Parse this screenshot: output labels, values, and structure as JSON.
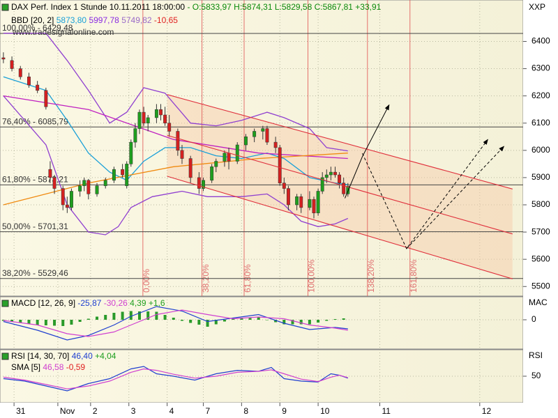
{
  "chart_data": [
    {
      "type": "candlestick",
      "title": "DAX Perf. Index 1 Stunde",
      "subtitle": "10.11.2011 18:00:00",
      "quote": "- O:5833,97 H:5874,31 L:5829,58 C:5867,81",
      "change": "+33,91",
      "watermark": "www.tradesignalonline.com",
      "axis_label": "XXP",
      "indicator": {
        "label": "BBD [20, 2]",
        "readings": [
          {
            "text": "5873,80",
            "color": "#1aa0d8"
          },
          {
            "text": "5997,78",
            "color": "#8a2be2"
          },
          {
            "text": "5749,82",
            "color": "#9a6ac8"
          },
          {
            "text": "-10,65",
            "color": "#e02020"
          }
        ]
      },
      "x": [
        0,
        2,
        4,
        6,
        8,
        10,
        11,
        12,
        14,
        15,
        16,
        18,
        19,
        20,
        22,
        24,
        26,
        28,
        29,
        30,
        31,
        32,
        33,
        34,
        36,
        37,
        38,
        39,
        41,
        42,
        44,
        46,
        47,
        49,
        50,
        52,
        53,
        55,
        57,
        59,
        61,
        62,
        64,
        65,
        66,
        67,
        69,
        70,
        72,
        73,
        74,
        75,
        76,
        77,
        78,
        79,
        80,
        81
      ],
      "open": [
        6340,
        6330,
        6300,
        6270,
        6240,
        6220,
        5930,
        5900,
        5860,
        5800,
        5790,
        5850,
        5870,
        5890,
        5840,
        5870,
        5890,
        5930,
        5870,
        5950,
        6030,
        6080,
        6140,
        6100,
        6120,
        6150,
        6130,
        6100,
        6070,
        6000,
        5970,
        5900,
        5860,
        5890,
        5940,
        5960,
        5990,
        5960,
        6020,
        6050,
        6070,
        6080,
        6030,
        6010,
        5880,
        5860,
        5800,
        5830,
        5790,
        5820,
        5770,
        5850,
        5900,
        5910,
        5920,
        5910,
        5880,
        5840
      ],
      "high": [
        6360,
        6345,
        6310,
        6285,
        6255,
        6230,
        5960,
        5910,
        5870,
        5830,
        5860,
        5890,
        5900,
        5895,
        5880,
        5900,
        5940,
        5950,
        5960,
        6040,
        6100,
        6150,
        6160,
        6130,
        6170,
        6170,
        6160,
        6130,
        6080,
        6020,
        5980,
        5920,
        5900,
        5950,
        5970,
        6000,
        6010,
        6030,
        6060,
        6080,
        6090,
        6090,
        6050,
        6020,
        5900,
        5870,
        5840,
        5840,
        5850,
        5830,
        5860,
        5920,
        5930,
        5940,
        5940,
        5920,
        5900,
        5880
      ],
      "low": [
        6320,
        6290,
        6260,
        6230,
        6210,
        6150,
        5880,
        5840,
        5780,
        5770,
        5780,
        5830,
        5850,
        5820,
        5830,
        5860,
        5880,
        5900,
        5860,
        5940,
        6010,
        6060,
        6090,
        6070,
        6100,
        6110,
        6090,
        6050,
        5980,
        5950,
        5880,
        5840,
        5850,
        5880,
        5920,
        5940,
        5930,
        5950,
        6000,
        6030,
        6040,
        6020,
        5990,
        5870,
        5840,
        5780,
        5780,
        5770,
        5780,
        5750,
        5760,
        5840,
        5880,
        5890,
        5900,
        5860,
        5830,
        5830
      ],
      "close": [
        6335,
        6300,
        6270,
        6240,
        6220,
        6160,
        5900,
        5860,
        5800,
        5790,
        5850,
        5870,
        5890,
        5840,
        5870,
        5890,
        5930,
        5910,
        5950,
        6030,
        6080,
        6140,
        6100,
        6120,
        6150,
        6130,
        6100,
        6070,
        6000,
        5970,
        5900,
        5860,
        5890,
        5940,
        5960,
        5990,
        5960,
        6020,
        6050,
        6070,
        6080,
        6030,
        6010,
        5880,
        5860,
        5800,
        5830,
        5790,
        5820,
        5770,
        5850,
        5900,
        5910,
        5920,
        5910,
        5880,
        5840,
        5868
      ],
      "up_color": "#1e9e1e",
      "down_color": "#d42020",
      "overlays": [
        {
          "color": "#1aa0d8",
          "x": [
            0,
            10,
            15,
            20,
            25,
            29,
            33,
            38,
            44,
            50,
            56,
            62,
            66,
            72,
            78,
            81
          ],
          "values": [
            6270,
            6220,
            6110,
            5990,
            5920,
            5890,
            5960,
            6010,
            6010,
            5980,
            5970,
            5990,
            5970,
            5900,
            5880,
            5874
          ]
        },
        {
          "color": "#9040d0",
          "x": [
            0,
            10,
            15,
            20,
            25,
            29,
            33,
            38,
            44,
            50,
            56,
            62,
            66,
            72,
            76,
            81
          ],
          "values": [
            6430,
            6430,
            6330,
            6220,
            6100,
            6140,
            6230,
            6210,
            6100,
            6090,
            6110,
            6140,
            6120,
            6080,
            6010,
            5998
          ]
        },
        {
          "color": "#9040d0",
          "x": [
            0,
            10,
            15,
            20,
            24,
            27,
            30,
            35,
            42,
            48,
            56,
            62,
            66,
            70,
            74,
            78,
            81
          ],
          "values": [
            6200,
            6020,
            5800,
            5700,
            5690,
            5720,
            5790,
            5830,
            5850,
            5830,
            5830,
            5840,
            5800,
            5740,
            5720,
            5730,
            5750
          ]
        },
        {
          "color": "#c020c0",
          "x": [
            0,
            20,
            40,
            60,
            81
          ],
          "values": [
            6200,
            6150,
            6040,
            5990,
            5970
          ]
        },
        {
          "color": "#f08a10",
          "x": [
            0,
            20,
            40,
            60,
            81
          ],
          "values": [
            5800,
            5880,
            5940,
            5970,
            5990
          ]
        }
      ],
      "levels": [
        {
          "value": 6429.48,
          "label": "100,00% - 6429,48"
        },
        {
          "value": 6085.79,
          "label": "76,40% - 6085,79"
        },
        {
          "value": 5873.21,
          "label": "61,80% - 5873,21"
        },
        {
          "value": 5701.31,
          "label": "50,00% - 5701,31"
        },
        {
          "value": 5529.46,
          "label": "38,20% - 5529,46"
        }
      ],
      "time_levels": [
        {
          "value": 32.8,
          "label": "0,00%"
        },
        {
          "value": 46.7,
          "label": "38,20%"
        },
        {
          "value": 56.6,
          "label": "61,80%"
        },
        {
          "value": 71.6,
          "label": "100,00%"
        },
        {
          "value": 85.6,
          "label": "138,20%"
        },
        {
          "value": 95.6,
          "label": "161,80%"
        }
      ],
      "channel": [
        {
          "x": [
            38.5,
            119.7
          ],
          "values": [
            6205,
            5858
          ]
        },
        {
          "x": [
            38.5,
            119.7
          ],
          "values": [
            6055,
            5693
          ]
        },
        {
          "x": [
            38.5,
            119.7
          ],
          "values": [
            5905,
            5528
          ]
        }
      ],
      "arrows": [
        {
          "x": [
            80.3,
            84.4,
            90.7
          ],
          "values": [
            5824,
            5977,
            6167
          ],
          "dashed": false
        },
        {
          "x": [
            84.4,
            94.8,
            113.9
          ],
          "values": [
            5989,
            5639,
            6040
          ],
          "dashed": true
        },
        {
          "x": [
            94.8,
            117.7
          ],
          "values": [
            5639,
            6015
          ],
          "dashed": true
        }
      ],
      "xlim": [
        -0.8,
        122.2
      ],
      "ylim": [
        5470,
        6547
      ],
      "yticks": [
        6400,
        6300,
        6200,
        6100,
        6000,
        5900,
        5800,
        5700,
        5600,
        5500
      ],
      "xticks": [
        {
          "value": 2.5,
          "label": "31"
        },
        {
          "value": 12.8,
          "label": "Nov"
        },
        {
          "value": 20.5,
          "label": "2"
        },
        {
          "value": 29.5,
          "label": "3"
        },
        {
          "value": 38.5,
          "label": "4"
        },
        {
          "value": 47,
          "label": "7"
        },
        {
          "value": 56,
          "label": "8"
        },
        {
          "value": 65,
          "label": "9"
        },
        {
          "value": 74,
          "label": "10"
        },
        {
          "value": 88.5,
          "label": "11"
        },
        {
          "value": 112,
          "label": "12"
        }
      ],
      "grid": true
    },
    {
      "type": "macd",
      "label": "MACD [12, 26, 9]",
      "readings": [
        {
          "text": "-25,87",
          "color": "#1f3fd0"
        },
        {
          "text": "-30,26",
          "color": "#d040d0"
        },
        {
          "text": "4,39",
          "color": "#1e9e1e"
        },
        {
          "text": "+1,6",
          "color": "#1e9e1e"
        }
      ],
      "axis_label": "MAC",
      "x": [
        0,
        8,
        15,
        20,
        26,
        30,
        36,
        42,
        48,
        54,
        60,
        66,
        72,
        78,
        81
      ],
      "series": [
        {
          "color": "#1f3fd0",
          "values": [
            -5,
            -30,
            -58,
            -45,
            -15,
            10,
            38,
            25,
            -5,
            5,
            15,
            -10,
            -28,
            -22,
            -26
          ]
        },
        {
          "color": "#d040d0",
          "values": [
            -2,
            -15,
            -40,
            -48,
            -35,
            -15,
            15,
            28,
            15,
            3,
            8,
            3,
            -15,
            -24,
            -30
          ]
        }
      ],
      "histogram": {
        "color": "#2a9a2a",
        "x": [
          0,
          2,
          4,
          6,
          8,
          10,
          12,
          14,
          16,
          18,
          20,
          22,
          24,
          26,
          28,
          30,
          32,
          34,
          36,
          38,
          40,
          42,
          44,
          46,
          48,
          50,
          52,
          54,
          56,
          58,
          60,
          62,
          64,
          66,
          68,
          70,
          72,
          74,
          76,
          78,
          80
        ],
        "values": [
          -3,
          -6,
          -9,
          -12,
          -15,
          -16,
          -17,
          -18,
          -14,
          -6,
          3,
          9,
          14,
          20,
          23,
          25,
          24,
          24,
          23,
          14,
          6,
          -3,
          -9,
          -14,
          -20,
          -13,
          -5,
          2,
          4,
          5,
          7,
          0,
          -7,
          -13,
          -13,
          -13,
          -13,
          -8,
          -3,
          2,
          4
        ]
      },
      "ylim": [
        -80,
        62
      ],
      "yticks": [
        0
      ]
    },
    {
      "type": "rsi",
      "label": "RSI [14, 30, 70]",
      "readings": [
        {
          "text": "46,40",
          "color": "#1f3fd0"
        },
        {
          "text": "+4,04",
          "color": "#1e9e1e"
        }
      ],
      "sublabel": "SMA [5]",
      "subreadings": [
        {
          "text": "46,58",
          "color": "#d040d0"
        },
        {
          "text": "-0,59",
          "color": "#e02020"
        }
      ],
      "axis_label": "RSI",
      "x": [
        0,
        5,
        10,
        15,
        20,
        25,
        30,
        33,
        36,
        40,
        45,
        50,
        55,
        60,
        63,
        66,
        70,
        74,
        77,
        79,
        81
      ],
      "series": [
        {
          "color": "#1f3fd0",
          "values": [
            45,
            40,
            30,
            20,
            35,
            45,
            65,
            70,
            55,
            50,
            42,
            55,
            62,
            60,
            68,
            45,
            40,
            38,
            55,
            52,
            46
          ]
        },
        {
          "color": "#d040d0",
          "values": [
            48,
            42,
            33,
            24,
            30,
            40,
            58,
            65,
            62,
            54,
            46,
            50,
            58,
            60,
            63,
            55,
            44,
            39,
            48,
            52,
            47
          ]
        }
      ],
      "ylim": [
        0,
        100
      ],
      "yticks": [
        50
      ]
    }
  ]
}
